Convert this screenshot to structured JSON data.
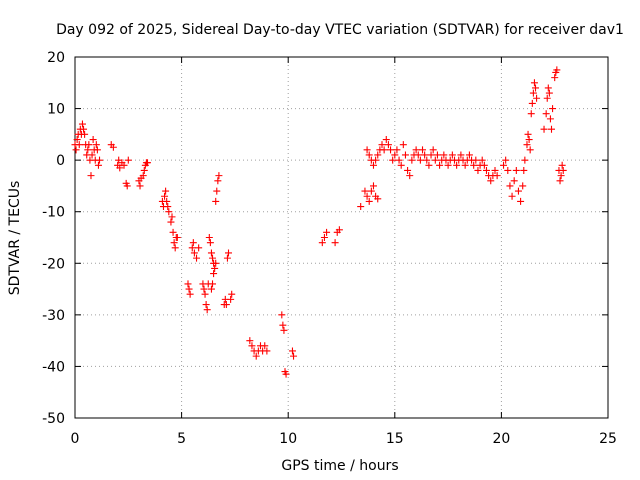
{
  "chart_data": {
    "type": "scatter",
    "title": "Day 092 of 2025, Sidereal Day-to-day VTEC variation (SDTVAR) for receiver dav1",
    "xlabel": "GPS time / hours",
    "ylabel": "SDTVAR / TECUs",
    "xlim": [
      0,
      25
    ],
    "ylim": [
      -50,
      20
    ],
    "xticks": [
      0,
      5,
      10,
      15,
      20,
      25
    ],
    "yticks": [
      -50,
      -40,
      -30,
      -20,
      -10,
      0,
      10,
      20
    ],
    "grid": true,
    "marker": "+",
    "color": "#ff0000",
    "segments": [
      [
        0.0,
        3
      ],
      [
        0.05,
        2
      ],
      [
        0.1,
        4
      ],
      [
        0.15,
        5
      ],
      [
        0.2,
        3
      ],
      [
        0.25,
        6
      ],
      [
        0.3,
        5
      ],
      [
        0.35,
        7
      ],
      [
        0.4,
        6
      ],
      [
        0.45,
        5
      ],
      [
        0.5,
        3
      ],
      [
        0.55,
        1
      ],
      [
        0.6,
        2
      ],
      [
        0.65,
        3
      ],
      [
        0.7,
        0
      ],
      [
        0.75,
        -3
      ],
      [
        0.8,
        1
      ],
      [
        0.85,
        4
      ],
      [
        0.9,
        2
      ],
      [
        0.95,
        0
      ],
      [
        1.0,
        3
      ],
      [
        1.05,
        2
      ],
      [
        1.1,
        -1
      ],
      [
        1.15,
        0
      ],
      [
        1.7,
        3
      ],
      [
        1.8,
        2.5
      ],
      [
        2.0,
        -1
      ],
      [
        2.05,
        0
      ],
      [
        2.1,
        -1.5
      ],
      [
        2.2,
        -0.5
      ],
      [
        2.3,
        -1
      ],
      [
        2.4,
        -4.5
      ],
      [
        2.45,
        -5
      ],
      [
        2.5,
        0
      ],
      [
        3.0,
        -4
      ],
      [
        3.05,
        -5
      ],
      [
        3.1,
        -3.5
      ],
      [
        3.2,
        -3
      ],
      [
        3.25,
        -2
      ],
      [
        3.3,
        -1
      ],
      [
        3.35,
        -0.5
      ],
      [
        3.4,
        -0.5
      ],
      [
        4.1,
        -8
      ],
      [
        4.15,
        -9
      ],
      [
        4.2,
        -7
      ],
      [
        4.25,
        -6
      ],
      [
        4.3,
        -8
      ],
      [
        4.35,
        -9
      ],
      [
        4.4,
        -10
      ],
      [
        4.5,
        -12
      ],
      [
        4.55,
        -11
      ],
      [
        4.6,
        -14
      ],
      [
        4.65,
        -16
      ],
      [
        4.7,
        -17
      ],
      [
        4.75,
        -15
      ],
      [
        4.8,
        -15
      ],
      [
        5.3,
        -24
      ],
      [
        5.35,
        -25
      ],
      [
        5.4,
        -26
      ],
      [
        5.5,
        -17
      ],
      [
        5.55,
        -16
      ],
      [
        5.6,
        -18
      ],
      [
        5.7,
        -19
      ],
      [
        5.8,
        -17
      ],
      [
        6.0,
        -24
      ],
      [
        6.05,
        -25
      ],
      [
        6.1,
        -26
      ],
      [
        6.15,
        -28
      ],
      [
        6.2,
        -29
      ],
      [
        6.25,
        -24
      ],
      [
        6.3,
        -15
      ],
      [
        6.35,
        -16
      ],
      [
        6.4,
        -18
      ],
      [
        6.45,
        -19
      ],
      [
        6.5,
        -20
      ],
      [
        6.55,
        -21
      ],
      [
        6.6,
        -20
      ],
      [
        6.6,
        -8
      ],
      [
        6.65,
        -6
      ],
      [
        6.7,
        -4
      ],
      [
        6.75,
        -3
      ],
      [
        6.4,
        -25
      ],
      [
        6.45,
        -24
      ],
      [
        6.5,
        -22
      ],
      [
        7.0,
        -28
      ],
      [
        7.05,
        -27
      ],
      [
        7.1,
        -28
      ],
      [
        7.15,
        -19
      ],
      [
        7.2,
        -18
      ],
      [
        7.3,
        -27
      ],
      [
        7.35,
        -26
      ],
      [
        8.2,
        -35
      ],
      [
        8.3,
        -36
      ],
      [
        8.4,
        -37
      ],
      [
        8.5,
        -38
      ],
      [
        8.6,
        -37
      ],
      [
        8.7,
        -36
      ],
      [
        8.8,
        -37
      ],
      [
        8.9,
        -36
      ],
      [
        9.0,
        -37
      ],
      [
        9.7,
        -30
      ],
      [
        9.75,
        -32
      ],
      [
        9.8,
        -33
      ],
      [
        9.85,
        -41
      ],
      [
        9.9,
        -41.5
      ],
      [
        10.2,
        -37
      ],
      [
        10.25,
        -38
      ],
      [
        11.6,
        -16
      ],
      [
        11.7,
        -15
      ],
      [
        11.8,
        -14
      ],
      [
        12.2,
        -16
      ],
      [
        12.3,
        -14
      ],
      [
        12.4,
        -13.5
      ],
      [
        13.4,
        -9
      ],
      [
        13.6,
        -6
      ],
      [
        13.7,
        -7
      ],
      [
        13.8,
        -8
      ],
      [
        13.9,
        -6
      ],
      [
        14.0,
        -5
      ],
      [
        14.1,
        -7
      ],
      [
        14.2,
        -7.5
      ],
      [
        13.7,
        2
      ],
      [
        13.8,
        1
      ],
      [
        13.9,
        0
      ],
      [
        14.0,
        -1
      ],
      [
        14.1,
        0
      ],
      [
        14.2,
        1
      ],
      [
        14.3,
        2
      ],
      [
        14.4,
        3
      ],
      [
        14.5,
        2
      ],
      [
        14.6,
        4
      ],
      [
        14.7,
        3
      ],
      [
        14.8,
        2
      ],
      [
        14.9,
        0
      ],
      [
        15.0,
        1
      ],
      [
        15.1,
        2
      ],
      [
        15.2,
        0
      ],
      [
        15.3,
        -1
      ],
      [
        15.4,
        3
      ],
      [
        15.5,
        1
      ],
      [
        15.6,
        -2
      ],
      [
        15.7,
        -3
      ],
      [
        15.8,
        0
      ],
      [
        15.9,
        1
      ],
      [
        16.0,
        2
      ],
      [
        16.1,
        1
      ],
      [
        16.2,
        0
      ],
      [
        16.3,
        2
      ],
      [
        16.4,
        1
      ],
      [
        16.5,
        0
      ],
      [
        16.6,
        -1
      ],
      [
        16.7,
        1
      ],
      [
        16.8,
        2
      ],
      [
        16.9,
        0
      ],
      [
        17.0,
        1
      ],
      [
        17.1,
        -1
      ],
      [
        17.2,
        0
      ],
      [
        17.3,
        1
      ],
      [
        17.4,
        0
      ],
      [
        17.5,
        -1
      ],
      [
        17.6,
        0
      ],
      [
        17.7,
        1
      ],
      [
        17.8,
        0
      ],
      [
        17.9,
        -1
      ],
      [
        18.0,
        0
      ],
      [
        18.1,
        1
      ],
      [
        18.2,
        0
      ],
      [
        18.3,
        -1
      ],
      [
        18.4,
        0
      ],
      [
        18.5,
        1
      ],
      [
        18.6,
        0
      ],
      [
        18.7,
        -1
      ],
      [
        18.8,
        0
      ],
      [
        18.9,
        -2
      ],
      [
        19.0,
        -1
      ],
      [
        19.1,
        0
      ],
      [
        19.2,
        -1
      ],
      [
        19.3,
        -2
      ],
      [
        19.4,
        -3
      ],
      [
        19.5,
        -4
      ],
      [
        19.6,
        -3
      ],
      [
        19.7,
        -2
      ],
      [
        19.8,
        -3
      ],
      [
        20.1,
        -1
      ],
      [
        20.2,
        0
      ],
      [
        20.3,
        -2
      ],
      [
        20.4,
        -5
      ],
      [
        20.5,
        -7
      ],
      [
        20.6,
        -4
      ],
      [
        20.7,
        -2
      ],
      [
        20.8,
        -6
      ],
      [
        20.9,
        -8
      ],
      [
        21.0,
        -5
      ],
      [
        21.05,
        -2
      ],
      [
        21.1,
        0
      ],
      [
        21.2,
        3
      ],
      [
        21.25,
        5
      ],
      [
        21.3,
        4
      ],
      [
        21.35,
        2
      ],
      [
        21.4,
        9
      ],
      [
        21.45,
        11
      ],
      [
        21.5,
        13
      ],
      [
        21.55,
        15
      ],
      [
        21.6,
        14
      ],
      [
        21.65,
        12
      ],
      [
        22.0,
        6
      ],
      [
        22.1,
        9
      ],
      [
        22.15,
        12
      ],
      [
        22.2,
        14
      ],
      [
        22.25,
        13
      ],
      [
        22.3,
        8
      ],
      [
        22.35,
        6
      ],
      [
        22.4,
        10
      ],
      [
        22.5,
        16
      ],
      [
        22.55,
        17
      ],
      [
        22.6,
        17.5
      ],
      [
        22.7,
        -2
      ],
      [
        22.75,
        -4
      ],
      [
        22.8,
        -3
      ],
      [
        22.85,
        -1
      ],
      [
        22.9,
        -2
      ]
    ]
  }
}
